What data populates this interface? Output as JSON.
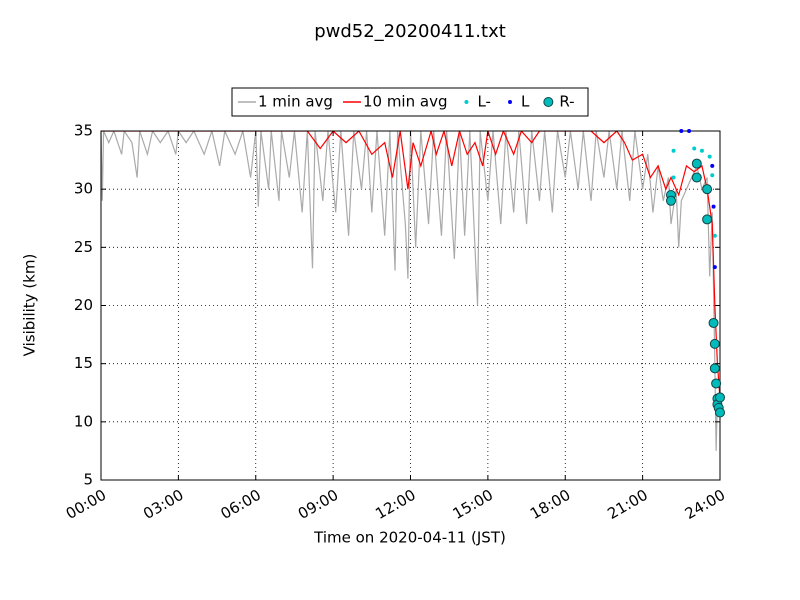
{
  "chart_data": {
    "type": "line",
    "title": "pwd52_20200411.txt",
    "xlabel": "Time on 2020-04-11 (JST)",
    "ylabel": "Visibility (km)",
    "xlim": [
      0,
      24
    ],
    "ylim": [
      5,
      35
    ],
    "xticks": [
      {
        "value": 0,
        "label": "00:00"
      },
      {
        "value": 3,
        "label": "03:00"
      },
      {
        "value": 6,
        "label": "06:00"
      },
      {
        "value": 9,
        "label": "09:00"
      },
      {
        "value": 12,
        "label": "12:00"
      },
      {
        "value": 15,
        "label": "15:00"
      },
      {
        "value": 18,
        "label": "18:00"
      },
      {
        "value": 21,
        "label": "21:00"
      },
      {
        "value": 24,
        "label": "24:00"
      }
    ],
    "yticks": [
      5,
      10,
      15,
      20,
      25,
      30,
      35
    ],
    "grid": true,
    "legend": "top",
    "series": [
      {
        "name": "1 min avg",
        "color": "#aaaaaa",
        "marker": "line",
        "x": [
          0,
          0.05,
          0.1,
          0.3,
          0.5,
          0.8,
          0.9,
          1.2,
          1.4,
          1.5,
          1.8,
          2.0,
          2.3,
          2.6,
          2.9,
          3.0,
          3.3,
          3.6,
          4.0,
          4.3,
          4.6,
          4.8,
          5.2,
          5.5,
          5.8,
          6.0,
          6.1,
          6.2,
          6.5,
          6.6,
          6.9,
          7.0,
          7.3,
          7.5,
          7.8,
          8.0,
          8.2,
          8.3,
          8.6,
          8.8,
          9.1,
          9.3,
          9.6,
          9.8,
          10.1,
          10.3,
          10.5,
          10.7,
          11.0,
          11.2,
          11.4,
          11.5,
          11.8,
          11.9,
          12.0,
          12.2,
          12.4,
          12.7,
          12.9,
          13.2,
          13.4,
          13.7,
          13.9,
          14.1,
          14.3,
          14.6,
          14.7,
          15.0,
          15.2,
          15.5,
          15.7,
          16.0,
          16.2,
          16.5,
          16.7,
          17.0,
          17.2,
          17.5,
          17.7,
          18.0,
          18.2,
          18.5,
          18.7,
          19.0,
          19.2,
          19.5,
          19.7,
          20.0,
          20.2,
          20.5,
          20.7,
          21.0,
          21.2,
          21.4,
          21.6,
          21.8,
          22.0,
          22.1,
          22.3,
          22.4,
          22.5,
          22.7,
          22.9,
          23.1,
          23.3,
          23.5,
          23.6,
          23.7,
          23.8,
          23.85,
          23.9,
          24.0
        ],
        "values": [
          35,
          29,
          35,
          34,
          35,
          33,
          35,
          34,
          31,
          35,
          33,
          35,
          34,
          35,
          33,
          35,
          34,
          35,
          33,
          35,
          32,
          35,
          33,
          35,
          31,
          35,
          28.5,
          35,
          30,
          35,
          29,
          35,
          31,
          35,
          28,
          35,
          23.2,
          35,
          29,
          35,
          28,
          35,
          26,
          35,
          30,
          35,
          28,
          35,
          26,
          35,
          23,
          35,
          27,
          22.3,
          35,
          25,
          35,
          27,
          35,
          26,
          35,
          24,
          35,
          26,
          35,
          20,
          35,
          29,
          35,
          27,
          35,
          28,
          35,
          27,
          35,
          29,
          35,
          28,
          35,
          31,
          35,
          30,
          35,
          29,
          35,
          31,
          35,
          30,
          35,
          29,
          35,
          30,
          33,
          28,
          32,
          29,
          31,
          27,
          30,
          25,
          29,
          30,
          31,
          32,
          30,
          31,
          22.5,
          28,
          15,
          7.5,
          12,
          11
        ]
      },
      {
        "name": "10 min avg",
        "color": "#ff0000",
        "marker": "line",
        "x": [
          0,
          2,
          6,
          8.0,
          8.5,
          9,
          9.5,
          10,
          10.5,
          11,
          11.3,
          11.6,
          11.9,
          12.1,
          12.4,
          12.8,
          13,
          13.3,
          13.6,
          13.9,
          14.2,
          14.5,
          14.8,
          15,
          15.3,
          15.6,
          16,
          16.3,
          16.7,
          17,
          18,
          19,
          19.5,
          20,
          20.3,
          20.6,
          21,
          21.3,
          21.6,
          21.9,
          22.1,
          22.4,
          22.7,
          23.0,
          23.3,
          23.5,
          23.7,
          23.8,
          23.9,
          24.0
        ],
        "values": [
          35,
          35,
          35,
          35,
          33.5,
          35,
          34,
          35,
          33,
          34,
          31,
          35,
          30,
          34,
          32,
          35,
          33,
          35,
          32,
          35,
          33,
          34,
          32,
          35,
          33,
          35,
          33,
          35,
          34,
          35,
          35,
          35,
          34,
          35,
          34,
          32.5,
          33,
          31,
          32,
          30,
          31,
          29.5,
          32,
          31.5,
          32,
          30,
          27,
          20,
          15,
          12
        ]
      },
      {
        "name": "L-",
        "color": "#00cccc",
        "marker": "dot",
        "x": [
          22.2,
          22.2,
          23.0,
          23.3,
          23.6,
          23.7,
          23.8
        ],
        "values": [
          33.3,
          31.0,
          33.5,
          33.3,
          32.8,
          31.2,
          26
        ]
      },
      {
        "name": "L",
        "color": "#0000ff",
        "marker": "dot",
        "x": [
          22.5,
          22.8,
          23.7,
          23.75,
          23.8
        ],
        "values": [
          35,
          35,
          32,
          28.5,
          23.3
        ]
      },
      {
        "name": "R-",
        "color": "#00bbbb",
        "marker": "circle",
        "x": [
          22.1,
          22.1,
          23.1,
          23.1,
          23.5,
          23.5,
          23.75,
          23.8,
          23.8,
          23.85,
          23.9,
          23.9,
          23.95,
          24,
          24
        ],
        "values": [
          29.5,
          29.0,
          32.2,
          31.0,
          30.0,
          27.4,
          18.5,
          16.7,
          14.6,
          13.3,
          12.0,
          11.5,
          11.2,
          10.8,
          12.1
        ]
      }
    ]
  }
}
